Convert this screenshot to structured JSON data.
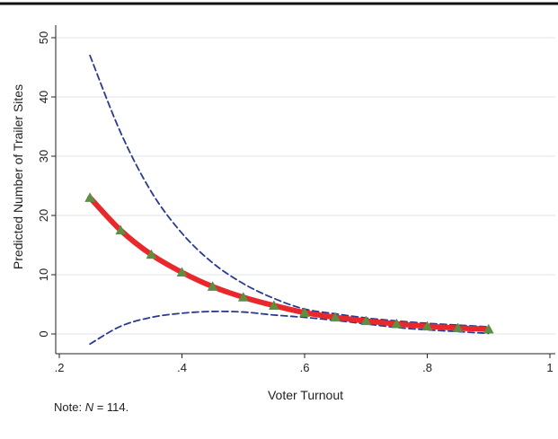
{
  "chart_data": {
    "type": "line",
    "xlabel": "Voter Turnout",
    "ylabel": "Predicted Number of Trailer Sites",
    "xlim": [
      0.2,
      1.0
    ],
    "ylim": [
      -3,
      50
    ],
    "x_ticks": [
      ".2",
      ".4",
      ".6",
      ".8",
      "1"
    ],
    "x_tick_values": [
      0.2,
      0.4,
      0.6,
      0.8,
      1.0
    ],
    "y_ticks": [
      "0",
      "10",
      "20",
      "30",
      "40",
      "50"
    ],
    "y_tick_values": [
      0,
      10,
      20,
      30,
      40,
      50
    ],
    "grid": "horizontal",
    "x": [
      0.25,
      0.3,
      0.35,
      0.4,
      0.45,
      0.5,
      0.55,
      0.6,
      0.65,
      0.7,
      0.75,
      0.8,
      0.85,
      0.9
    ],
    "series": [
      {
        "role": "estimate",
        "color": "#e8282b",
        "marker": "triangle",
        "marker_color": "#5d8f43",
        "values": [
          23.0,
          17.5,
          13.4,
          10.4,
          8.0,
          6.2,
          4.8,
          3.6,
          2.8,
          2.2,
          1.7,
          1.3,
          1.0,
          0.8
        ]
      },
      {
        "role": "upper bound",
        "color": "#2b3a8f",
        "style": "dashed",
        "values": [
          47.0,
          34.0,
          24.0,
          17.0,
          12.0,
          8.5,
          6.0,
          4.2,
          3.4,
          2.7,
          2.2,
          1.8,
          1.5,
          1.2
        ]
      },
      {
        "role": "lower bound",
        "color": "#2b3a8f",
        "style": "dashed",
        "values": [
          -1.7,
          1.3,
          2.8,
          3.5,
          3.8,
          3.7,
          3.2,
          2.8,
          2.3,
          1.7,
          1.1,
          0.7,
          0.4,
          0.1
        ]
      }
    ]
  },
  "note": {
    "prefix": "Note: ",
    "italic": "N",
    "suffix": " = 114."
  }
}
